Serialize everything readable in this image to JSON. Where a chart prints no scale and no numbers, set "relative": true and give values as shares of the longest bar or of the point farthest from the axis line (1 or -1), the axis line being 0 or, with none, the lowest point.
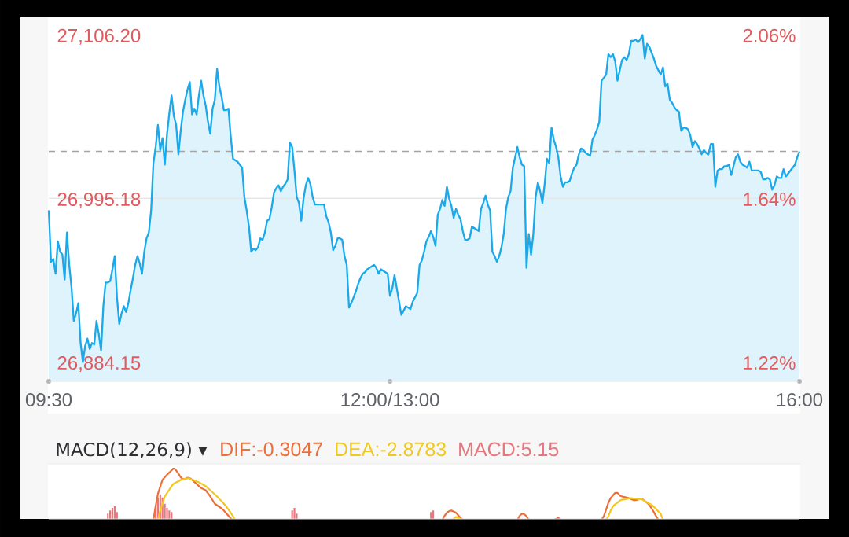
{
  "chart_data": [
    {
      "type": "area",
      "color": "#1aa9ea",
      "categories": [
        "09:30",
        null,
        null,
        null,
        null,
        null,
        null,
        null,
        null,
        null,
        null,
        null,
        null,
        null,
        null,
        null,
        null,
        null,
        null,
        null,
        null,
        null,
        null,
        null,
        null,
        null,
        null,
        null,
        null,
        null,
        null,
        null,
        null,
        null,
        null,
        null,
        null,
        null,
        null,
        null,
        null,
        null,
        null,
        null,
        null,
        null,
        null,
        null,
        null,
        null,
        null,
        null,
        null,
        null,
        null,
        null,
        null,
        null,
        null,
        null,
        null,
        null,
        null,
        null,
        null,
        null,
        null,
        null,
        null,
        null,
        null,
        null,
        null,
        null,
        null,
        null,
        null,
        null,
        null,
        null,
        null,
        null,
        null,
        null,
        null,
        null,
        null,
        null,
        null,
        null,
        null,
        null,
        null,
        null,
        null,
        null,
        null,
        null,
        null,
        null,
        null,
        null,
        null,
        null,
        null,
        null,
        null,
        null,
        null,
        null,
        null,
        null,
        null,
        null,
        null,
        null,
        null,
        null,
        null,
        null,
        null,
        null,
        null,
        null,
        null,
        null,
        null,
        null,
        null,
        null,
        null,
        null,
        null,
        null,
        null,
        null,
        null,
        null,
        null,
        null,
        null,
        null,
        null,
        null,
        null,
        null,
        null,
        null,
        null,
        null,
        "12:00/13:00",
        null,
        null,
        null,
        null,
        null,
        null,
        null,
        null,
        null,
        null,
        null,
        null,
        null,
        null,
        null,
        null,
        null,
        null,
        null,
        null,
        null,
        null,
        null,
        null,
        null,
        null,
        null,
        null,
        null,
        null,
        null,
        null,
        null,
        null,
        null,
        null,
        null,
        null,
        null,
        null,
        null,
        null,
        null,
        null,
        null,
        null,
        null,
        null,
        null,
        null,
        null,
        null,
        null,
        null,
        null,
        null,
        null,
        null,
        null,
        null,
        null,
        null,
        null,
        null,
        null,
        null,
        null,
        null,
        null,
        null,
        null,
        null,
        null,
        null,
        null,
        null,
        null,
        null,
        null,
        null,
        null,
        null,
        null,
        null,
        null,
        null,
        null,
        null,
        null,
        null,
        null,
        null,
        null,
        null,
        null,
        null,
        null,
        null,
        null,
        null,
        null,
        null,
        null,
        null,
        null,
        null,
        null,
        null,
        null,
        null,
        null,
        null,
        null,
        null,
        null,
        null,
        null,
        null,
        null,
        null,
        null,
        null,
        null,
        null,
        null,
        null,
        null,
        null,
        null,
        null,
        null,
        null,
        null,
        null,
        null,
        null,
        null,
        null,
        null,
        null,
        null,
        null,
        null,
        null,
        null,
        null,
        null,
        null,
        null,
        null,
        null,
        null,
        null,
        null,
        null,
        null,
        null,
        null,
        null,
        null,
        null,
        null,
        null,
        null,
        null,
        null,
        null,
        null,
        null,
        null,
        null,
        null,
        null,
        null,
        null,
        null,
        null,
        null,
        null,
        "16:00"
      ],
      "values": [
        26987,
        26952,
        26954,
        26944,
        26966,
        26959,
        26957,
        26940,
        26972,
        26950,
        26935,
        26912,
        26917,
        26924,
        26897,
        26884,
        26895,
        26900,
        26893,
        26897,
        26896,
        26912,
        26903,
        26892,
        26922,
        26938,
        26938,
        26939,
        26947,
        26956,
        26928,
        26910,
        26917,
        26922,
        26918,
        26924,
        26933,
        26941,
        26950,
        26956,
        26951,
        26944,
        26959,
        26968,
        26972,
        26987,
        27019,
        27030,
        27045,
        27028,
        27036,
        27018,
        27039,
        27053,
        27065,
        27051,
        27045,
        27025,
        27041,
        27054,
        27062,
        27069,
        27074,
        27052,
        27056,
        27052,
        27065,
        27075,
        27065,
        27058,
        27047,
        27039,
        27056,
        27062,
        27083,
        27071,
        27064,
        27055,
        27055,
        27056,
        27037,
        27022,
        27021,
        27020,
        27018,
        27016,
        26996,
        26987,
        26976,
        26959,
        26961,
        26960,
        26962,
        26968,
        26967,
        26972,
        26980,
        26981,
        26989,
        26999,
        27002,
        27004,
        27000,
        27003,
        27005,
        27008,
        27033,
        27030,
        27014,
        26996,
        26992,
        26980,
        26995,
        27004,
        27009,
        27005,
        26996,
        26991,
        26991,
        26991,
        26991,
        26991,
        26983,
        26979,
        26972,
        26960,
        26963,
        26968,
        26968,
        26967,
        26956,
        26950,
        26921,
        26924,
        26928,
        26932,
        26937,
        26941,
        26944,
        26945,
        26947,
        26948,
        26949,
        26950,
        26948,
        26944,
        26947,
        26946,
        26945,
        26944,
        26929,
        26934,
        26943,
        26934,
        26925,
        26916,
        26919,
        26922,
        26921,
        26920,
        26925,
        26928,
        26931,
        26950,
        26953,
        26959,
        26966,
        26969,
        26973,
        26969,
        26963,
        26984,
        26988,
        26994,
        26990,
        27003,
        26995,
        26990,
        26982,
        26988,
        26984,
        26981,
        26973,
        26967,
        26967,
        26968,
        26976,
        26975,
        26974,
        26973,
        26988,
        26992,
        26997,
        26991,
        26987,
        26959,
        26956,
        26952,
        26956,
        26962,
        26971,
        26988,
        26996,
        27000,
        27016,
        27023,
        27030,
        27023,
        27018,
        27017,
        26948,
        26971,
        26957,
        26971,
        26996,
        27006,
        27000,
        26992,
        27005,
        27022,
        27019,
        27043,
        27035,
        27030,
        27023,
        27010,
        27003,
        27006,
        27006,
        27007,
        27012,
        27016,
        27018,
        27025,
        27029,
        27028,
        27026,
        27025,
        27024,
        27035,
        27038,
        27042,
        27047,
        27075,
        27077,
        27079,
        27093,
        27091,
        27093,
        27088,
        27075,
        27082,
        27089,
        27091,
        27089,
        27093,
        27102,
        27102,
        27103,
        27101,
        27103,
        27106,
        27090,
        27100,
        27098,
        27094,
        27090,
        27085,
        27082,
        27079,
        27084,
        27071,
        27073,
        27062,
        27060,
        27057,
        27055,
        27054,
        27041,
        27043,
        27043,
        27042,
        27038,
        27030,
        27034,
        27032,
        27029,
        27025,
        27028,
        27026,
        27025,
        27032,
        27032,
        27003,
        27014,
        27015,
        27015,
        27017,
        27017,
        27018,
        27011,
        27017,
        27023,
        27025,
        27020,
        27018,
        27017,
        27016,
        27020,
        27014,
        27014,
        27014,
        27014,
        27013,
        27008,
        27008,
        27009,
        27008,
        27001,
        27004,
        27010,
        27009,
        27009,
        27015,
        27010,
        27012,
        27014,
        27016,
        27018,
        27023,
        27027
      ],
      "ylim": [
        26871,
        27118
      ],
      "yticks": [
        {
          "value": 26884.15,
          "label": "26,884.15"
        },
        {
          "value": 26995.18,
          "label": "26,995.18"
        },
        {
          "value": 27106.2,
          "label": "27,106.20"
        }
      ],
      "y2lim": [
        1.1703,
        2.1046
      ],
      "y2ticks": [
        {
          "value": 1.22,
          "label": "1.22%"
        },
        {
          "value": 1.64,
          "label": "1.64%"
        },
        {
          "value": 2.06,
          "label": "2.06%"
        }
      ],
      "ref_lines": [
        {
          "axis": "y",
          "value": 26995.18,
          "color": "#e6e6e6",
          "line_style": "solid"
        },
        {
          "axis": "y",
          "value": 27027,
          "color": "#a3a3a3",
          "line_style": "dashed"
        }
      ]
    },
    {
      "type": "line",
      "title": "MACD(12,26,9) ▾",
      "relative": true,
      "legend": "top left",
      "categories": [
        null,
        null,
        null,
        null,
        null,
        null,
        null,
        null,
        null,
        null,
        null,
        null,
        null,
        null,
        null,
        null,
        null,
        null,
        null,
        null,
        null,
        null,
        null,
        null,
        null,
        null,
        null,
        null,
        null,
        null,
        null,
        null,
        null,
        null,
        null,
        null,
        null,
        null,
        null,
        null,
        null,
        null,
        null,
        null,
        null,
        null,
        null,
        null,
        null,
        null,
        null,
        null,
        null,
        null,
        null,
        null,
        null,
        null,
        null,
        null,
        null,
        null,
        null,
        null,
        null,
        null,
        null,
        null,
        null,
        null,
        null,
        null,
        null,
        null,
        null,
        null,
        null,
        null,
        null,
        null,
        null,
        null,
        null,
        null,
        null,
        null,
        null,
        null,
        null,
        null,
        null,
        null,
        null,
        null,
        null,
        null,
        null,
        null,
        null,
        null,
        null,
        null,
        null,
        null,
        null,
        null,
        null,
        null,
        null,
        null,
        null,
        null,
        null,
        null,
        null,
        null,
        null,
        null,
        null,
        null,
        null,
        null,
        null,
        null,
        null,
        null,
        null,
        null,
        null,
        null,
        null,
        null,
        null,
        null,
        null,
        null,
        null,
        null,
        null,
        null,
        null,
        null,
        null,
        null,
        null,
        null,
        null,
        null,
        null,
        null,
        null,
        null,
        null,
        null,
        null,
        null,
        null,
        null,
        null,
        null,
        null,
        null,
        null,
        null,
        null,
        null,
        null,
        null,
        null,
        null,
        null,
        null,
        null,
        null,
        null,
        null,
        null,
        null,
        null,
        null,
        null,
        null,
        null,
        null,
        null,
        null,
        null,
        null,
        null,
        null,
        null,
        null,
        null,
        null,
        null,
        null,
        null,
        null,
        null,
        null,
        null,
        null,
        null,
        null,
        null,
        null,
        null,
        null,
        null,
        null,
        null,
        null,
        null,
        null,
        null,
        null,
        null,
        null,
        null,
        null,
        null,
        null,
        null,
        null,
        null,
        null,
        null,
        null,
        null,
        null,
        null,
        null,
        null,
        null,
        null,
        null,
        null,
        null,
        null,
        null,
        null,
        null,
        null,
        null,
        null,
        null,
        null,
        null,
        null,
        null,
        null,
        null,
        null,
        null,
        null,
        null,
        null,
        null,
        null,
        null,
        null,
        null,
        null,
        null,
        null,
        null,
        null,
        null,
        null,
        null,
        null,
        null,
        null,
        null,
        null,
        null,
        null,
        null,
        null,
        null,
        null,
        null,
        null,
        null,
        null,
        null,
        null,
        null,
        null,
        null,
        null,
        null,
        null,
        null,
        null,
        null,
        null,
        null,
        null,
        null,
        null,
        null,
        null,
        null,
        null,
        null,
        null,
        null,
        null,
        null,
        null,
        null,
        null,
        null,
        null,
        null,
        null,
        null,
        null,
        null,
        null,
        null,
        null,
        null,
        null,
        null,
        null,
        null,
        null,
        null,
        null
      ],
      "series": [
        {
          "name": "DIF:-0.3047",
          "color": "#ec6f3a",
          "values": [
            null,
            null,
            null,
            null,
            null,
            null,
            null,
            null,
            null,
            null,
            null,
            null,
            null,
            null,
            null,
            null,
            null,
            null,
            null,
            null,
            null,
            null,
            null,
            null,
            null,
            null,
            null,
            null,
            null,
            null,
            null,
            null,
            null,
            null,
            null,
            null,
            null,
            null,
            null,
            null,
            null,
            null,
            null,
            null,
            null,
            null,
            0,
            0.27,
            0.5,
            0.64,
            0.77,
            0.82,
            0.87,
            0.91,
            0.95,
            1,
            0.95,
            0.89,
            0.82,
            0.78,
            0.79,
            0.81,
            0.8,
            0.77,
            0.73,
            0.69,
            0.65,
            0.61,
            0.59,
            0.57,
            0.51,
            0.45,
            0.38,
            0.31,
            0.28,
            0.25,
            0.22,
            0.18,
            0.13,
            0.08,
            0.03,
            0,
            null,
            null,
            null,
            null,
            null,
            null,
            null,
            null,
            null,
            null,
            null,
            null,
            null,
            null,
            null,
            null,
            null,
            null,
            null,
            null,
            null,
            null,
            null,
            null,
            null,
            null,
            null,
            null,
            null,
            null,
            null,
            null,
            null,
            null,
            null,
            null,
            null,
            null,
            null,
            null,
            null,
            null,
            null,
            null,
            null,
            null,
            null,
            null,
            null,
            null,
            null,
            null,
            null,
            null,
            null,
            null,
            null,
            null,
            null,
            null,
            null,
            null,
            null,
            null,
            null,
            null,
            null,
            null,
            null,
            null,
            null,
            null,
            null,
            null,
            null,
            null,
            null,
            null,
            null,
            null,
            null,
            null,
            null,
            null,
            null,
            null,
            null,
            null,
            null,
            null,
            null,
            0,
            0.08,
            0.14,
            0.17,
            0.18,
            0.16,
            0.14,
            0.09,
            0.04,
            0,
            null,
            null,
            null,
            null,
            null,
            null,
            null,
            null,
            null,
            null,
            null,
            null,
            null,
            null,
            null,
            null,
            null,
            null,
            null,
            null,
            null,
            null,
            null,
            0,
            0.08,
            0.12,
            0.11,
            0.07,
            0,
            null,
            null,
            null,
            null,
            null,
            null,
            null,
            null,
            null,
            null,
            0,
            0.02,
            0.04,
            0,
            null,
            null,
            null,
            null,
            null,
            null,
            null,
            null,
            null,
            null,
            null,
            null,
            null,
            null,
            null,
            null,
            null,
            0,
            0.07,
            0.2,
            0.33,
            0.42,
            0.47,
            0.52,
            0.52,
            0.47,
            0.45,
            0.44,
            0.43,
            0.42,
            0.4,
            0.38,
            0.38,
            0.39,
            0.4,
            0.4,
            0.36,
            0.33,
            0.29,
            0.22,
            0.15,
            0.07,
            0,
            null,
            null,
            null,
            null,
            null,
            null,
            null,
            null,
            null,
            null,
            null,
            null,
            null,
            null,
            null,
            null,
            null,
            null,
            null,
            null,
            null,
            null,
            null,
            null,
            null,
            null,
            null,
            null,
            null,
            null,
            null,
            null,
            null,
            null,
            null,
            null,
            null,
            null,
            null,
            null,
            null,
            null,
            null,
            null,
            null,
            null,
            null,
            null,
            null,
            null,
            null,
            null,
            null,
            null,
            null,
            null,
            null,
            null,
            null,
            null,
            null,
            null
          ]
        },
        {
          "name": "DEA:-2.8783",
          "color": "#f2c81e",
          "values": [
            null,
            null,
            null,
            null,
            null,
            null,
            null,
            null,
            null,
            null,
            null,
            null,
            null,
            null,
            null,
            null,
            null,
            null,
            null,
            null,
            null,
            null,
            null,
            null,
            null,
            null,
            null,
            null,
            null,
            null,
            null,
            null,
            null,
            null,
            null,
            null,
            null,
            null,
            null,
            null,
            null,
            null,
            null,
            null,
            null,
            null,
            null,
            null,
            0,
            0.18,
            0.31,
            0.45,
            0.52,
            0.58,
            0.65,
            0.7,
            0.72,
            0.74,
            0.77,
            0.78,
            0.79,
            0.8,
            0.79,
            0.77,
            0.76,
            0.74,
            0.72,
            0.7,
            0.67,
            0.65,
            0.61,
            0.57,
            0.53,
            0.49,
            0.45,
            0.4,
            0.36,
            0.31,
            0.26,
            0.2,
            0.14,
            0.07,
            0,
            null,
            null,
            null,
            null,
            null,
            null,
            null,
            null,
            null,
            null,
            null,
            null,
            null,
            null,
            null,
            null,
            null,
            null,
            null,
            null,
            null,
            null,
            null,
            null,
            null,
            null,
            null,
            null,
            null,
            null,
            null,
            null,
            null,
            null,
            null,
            null,
            null,
            null,
            null,
            null,
            null,
            null,
            null,
            null,
            null,
            null,
            null,
            null,
            null,
            null,
            null,
            null,
            null,
            null,
            null,
            null,
            null,
            null,
            null,
            null,
            null,
            null,
            null,
            null,
            null,
            null,
            null,
            null,
            null,
            null,
            null,
            null,
            null,
            null,
            null,
            null,
            null,
            null,
            null,
            null,
            null,
            null,
            null,
            null,
            null,
            null,
            null,
            null,
            null,
            null,
            null,
            null,
            null,
            null,
            0,
            0.02,
            0.06,
            0.04,
            0.02,
            0,
            null,
            null,
            null,
            null,
            null,
            null,
            null,
            null,
            null,
            null,
            null,
            null,
            null,
            null,
            null,
            null,
            null,
            null,
            null,
            null,
            null,
            null,
            null,
            null,
            null,
            null,
            null,
            null,
            null,
            null,
            null,
            null,
            null,
            null,
            null,
            null,
            null,
            null,
            null,
            null,
            null,
            null,
            null,
            null,
            null,
            null,
            null,
            null,
            null,
            null,
            null,
            null,
            null,
            null,
            null,
            null,
            null,
            null,
            null,
            null,
            null,
            null,
            0,
            0.07,
            0.18,
            0.26,
            0.3,
            0.33,
            0.37,
            0.39,
            0.39,
            0.4,
            0.41,
            0.42,
            0.41,
            0.41,
            0.4,
            0.4,
            0.39,
            0.36,
            0.34,
            0.31,
            0.29,
            0.25,
            0.21,
            0.16,
            0.12,
            0,
            null,
            null,
            null,
            null,
            null,
            null,
            null,
            null,
            null,
            null,
            null,
            null,
            null,
            null,
            null,
            null,
            null,
            null,
            null,
            null,
            null,
            null,
            null,
            null,
            null,
            null,
            null,
            null,
            null,
            null,
            null,
            null,
            null,
            null,
            null,
            null,
            null,
            null,
            null,
            null,
            null,
            null,
            null,
            null,
            null,
            null,
            null,
            null,
            null,
            null,
            null,
            null,
            null,
            null,
            null,
            null,
            null,
            null,
            null,
            null
          ]
        },
        {
          "name": "MACD:5.15",
          "type": "bar",
          "color": "#e8777d",
          "values": [
            null,
            null,
            null,
            null,
            null,
            null,
            null,
            null,
            null,
            null,
            null,
            null,
            null,
            null,
            null,
            null,
            null,
            null,
            null,
            null,
            null,
            null,
            null,
            null,
            null,
            null,
            0.12,
            0.18,
            0.23,
            0.26,
            0.15,
            null,
            null,
            null,
            null,
            null,
            null,
            null,
            null,
            null,
            null,
            null,
            null,
            null,
            null,
            null,
            null,
            0.23,
            0.43,
            0.49,
            0.43,
            0.31,
            0.23,
            0.18,
            0.15,
            null,
            null,
            null,
            null,
            null,
            null,
            null,
            null,
            null,
            null,
            null,
            null,
            null,
            null,
            null,
            null,
            null,
            null,
            null,
            null,
            null,
            null,
            null,
            null,
            null,
            null,
            null,
            null,
            null,
            null,
            null,
            null,
            null,
            null,
            null,
            null,
            null,
            null,
            null,
            null,
            null,
            null,
            null,
            null,
            null,
            null,
            null,
            null,
            null,
            null,
            null,
            null,
            0.18,
            0.23,
            0.12,
            null,
            null,
            null,
            null,
            null,
            null,
            null,
            null,
            null,
            null,
            null,
            null,
            null,
            null,
            null,
            null,
            null,
            null,
            null,
            null,
            null,
            null,
            null,
            null,
            null,
            null,
            null,
            null,
            null,
            null,
            null,
            null,
            null,
            null,
            null,
            null,
            null,
            null,
            null,
            null,
            null,
            null,
            null,
            null,
            null,
            null,
            null,
            null,
            null,
            null,
            null,
            null,
            null,
            null,
            null,
            null,
            null,
            null,
            0.15,
            0.18,
            null,
            null,
            null,
            null,
            null,
            null,
            null,
            null,
            null,
            null,
            null,
            null,
            null,
            null,
            null,
            null,
            null,
            null,
            null,
            null,
            null,
            null,
            null,
            null,
            null,
            null,
            null,
            null,
            null,
            null,
            null,
            null,
            null,
            null,
            null,
            null,
            null,
            null,
            null,
            null,
            null,
            null,
            null,
            null,
            null,
            null,
            null,
            null,
            null,
            null,
            null,
            null,
            null,
            null,
            null,
            null,
            null,
            null,
            null,
            null,
            null,
            null,
            null,
            null,
            null,
            null,
            null,
            null,
            null,
            null,
            null,
            null,
            null,
            null,
            null,
            null,
            null,
            null,
            null,
            null,
            null,
            null,
            null,
            null,
            null,
            null,
            null,
            null,
            null,
            null,
            null,
            null,
            null,
            null,
            null,
            null,
            null,
            null,
            null,
            null,
            null,
            null,
            null,
            null,
            null,
            null,
            null,
            null,
            null,
            null,
            null,
            null,
            null,
            null,
            null,
            null,
            null,
            null,
            null,
            null,
            null,
            null,
            null,
            null,
            null,
            null,
            null,
            null,
            null,
            null,
            null,
            null,
            null,
            null,
            null,
            null,
            null,
            null,
            null,
            null,
            null,
            null,
            null,
            null,
            null,
            null,
            null,
            null,
            null,
            null,
            null,
            null,
            null,
            null,
            null,
            null,
            null,
            null,
            null,
            null,
            null
          ]
        }
      ]
    }
  ]
}
